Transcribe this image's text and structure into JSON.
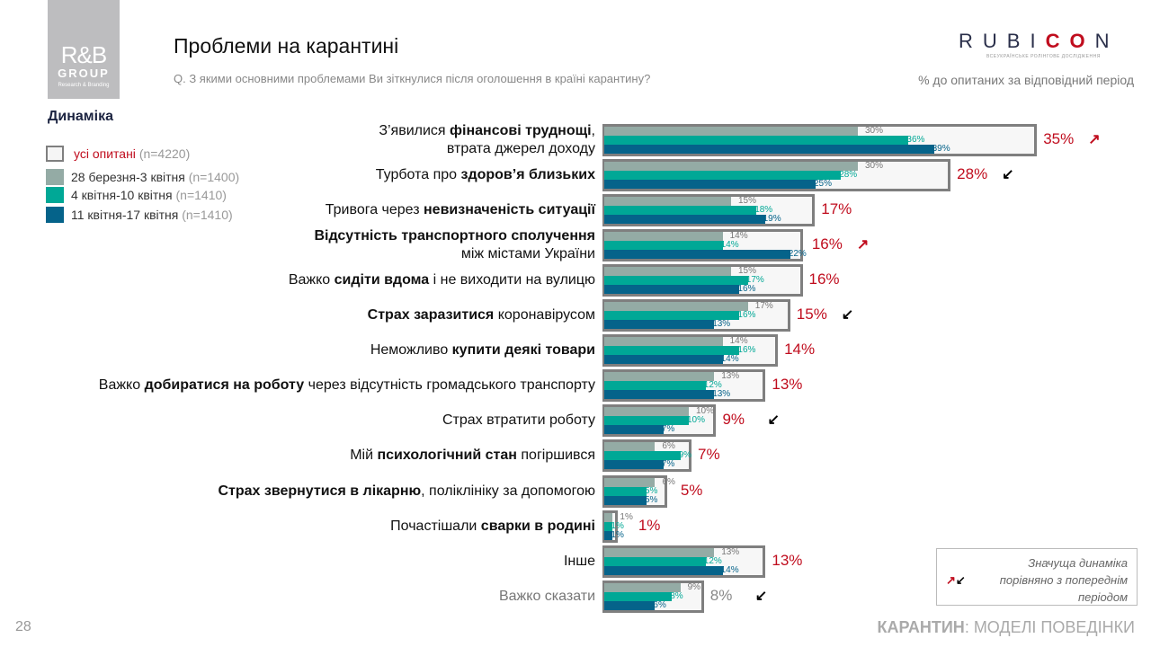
{
  "logo": {
    "line1": "R&B",
    "line2": "GROUP",
    "line3": "Research & Branding"
  },
  "title": "Проблеми на карантині",
  "question": "Q. З якими основними проблемами Ви зіткнулися після оголошення в країні карантину?",
  "brand": {
    "pre": "RUBI",
    "red": "CO",
    "post": "N",
    "subtitle": "ВСЕУКРАЇНСЬКЕ РОЛІНГОВЕ ДОСЛІДЖЕННЯ"
  },
  "pct_note": "% до опитаних за відповідний період",
  "legend": {
    "heading": "Динаміка",
    "items": [
      {
        "label": "усі опитані",
        "n": "(n=4220)",
        "color": "#f5f5f5"
      },
      {
        "label": "28 березня-3 квітня",
        "n": "(n=1400)",
        "color": "#94aba5"
      },
      {
        "label": "4 квітня-10 квітня",
        "n": "(n=1410)",
        "color": "#00a896"
      },
      {
        "label": "11 квітня-17 квітня",
        "n": "(n=1410)",
        "color": "#05638a"
      }
    ]
  },
  "chart_data": {
    "type": "bar",
    "series": [
      {
        "name": "усі опитані",
        "key": "total"
      },
      {
        "name": "28 березня-3 квітня",
        "key": "w1"
      },
      {
        "name": "4 квітня-10 квітня",
        "key": "w2"
      },
      {
        "name": "11 квітня-17 квітня",
        "key": "w3"
      }
    ],
    "rows": [
      {
        "parts": [
          {
            "t": "З’явилися "
          },
          {
            "t": "фінансові труднощі",
            "b": true
          },
          {
            "t": ","
          }
        ],
        "line2": "втрата джерел доходу",
        "total": "35%",
        "values": [
          30,
          36,
          39
        ],
        "labels": [
          "30%",
          "36%",
          "39%"
        ],
        "trend": "up"
      },
      {
        "parts": [
          {
            "t": "Турбота про "
          },
          {
            "t": "здоров’я близьких",
            "b": true
          }
        ],
        "total": "28%",
        "values": [
          30,
          28,
          25
        ],
        "labels": [
          "30%",
          "28%",
          "25%"
        ],
        "trend": "down"
      },
      {
        "parts": [
          {
            "t": "Тривога через "
          },
          {
            "t": "невизначеність ситуації",
            "b": true
          }
        ],
        "total": "17%",
        "values": [
          15,
          18,
          19
        ],
        "labels": [
          "15%",
          "18%",
          "19%"
        ],
        "trend": ""
      },
      {
        "parts": [
          {
            "t": "Відсутність транспортного сполучення",
            "b": true
          }
        ],
        "line2": "між містами України",
        "total": "16%",
        "values": [
          14,
          14,
          22
        ],
        "labels": [
          "14%",
          "14%",
          "22%"
        ],
        "trend": "up"
      },
      {
        "parts": [
          {
            "t": "Важко "
          },
          {
            "t": "сидіти вдома",
            "b": true
          },
          {
            "t": " і не виходити на вулицю"
          }
        ],
        "total": "16%",
        "values": [
          15,
          17,
          16
        ],
        "labels": [
          "15%",
          "17%",
          "16%"
        ],
        "trend": ""
      },
      {
        "parts": [
          {
            "t": "Страх заразитися",
            "b": true
          },
          {
            "t": " коронавірусом"
          }
        ],
        "total": "15%",
        "values": [
          17,
          16,
          13
        ],
        "labels": [
          "17%",
          "16%",
          "13%"
        ],
        "trend": "down"
      },
      {
        "parts": [
          {
            "t": "Неможливо "
          },
          {
            "t": "купити деякі товари",
            "b": true
          }
        ],
        "total": "14%",
        "values": [
          14,
          16,
          14
        ],
        "labels": [
          "14%",
          "16%",
          "14%"
        ],
        "trend": ""
      },
      {
        "parts": [
          {
            "t": "Важко "
          },
          {
            "t": "добиратися на роботу",
            "b": true
          },
          {
            "t": " через відсутність громадського транспорту"
          }
        ],
        "total": "13%",
        "values": [
          13,
          12,
          13
        ],
        "labels": [
          "13%",
          "12%",
          "13%"
        ],
        "trend": ""
      },
      {
        "parts": [
          {
            "t": "Страх втратити роботу"
          }
        ],
        "total": "9%",
        "values": [
          10,
          10,
          7
        ],
        "labels": [
          "10%",
          "10%",
          "7%"
        ],
        "trend": "down"
      },
      {
        "parts": [
          {
            "t": "Мій "
          },
          {
            "t": "психологічний стан",
            "b": true
          },
          {
            "t": " погіршився"
          }
        ],
        "total": "7%",
        "values": [
          6,
          9,
          7
        ],
        "labels": [
          "6%",
          "9%",
          "7%"
        ],
        "trend": ""
      },
      {
        "parts": [
          {
            "t": "Страх звернутися в лікарню",
            "b": true
          },
          {
            "t": ", поліклініку за допомогою"
          }
        ],
        "total": "5%",
        "values": [
          6,
          5,
          5
        ],
        "labels": [
          "6%",
          "5%",
          "5%"
        ],
        "trend": ""
      },
      {
        "parts": [
          {
            "t": "Почастішали "
          },
          {
            "t": "сварки в родині",
            "b": true
          }
        ],
        "total": "1%",
        "values": [
          1,
          1,
          1
        ],
        "labels": [
          "1%",
          "1%",
          "1%"
        ],
        "trend": ""
      },
      {
        "parts": [
          {
            "t": "Інше"
          }
        ],
        "total": "13%",
        "values": [
          13,
          12,
          14
        ],
        "labels": [
          "13%",
          "12%",
          "14%"
        ],
        "trend": ""
      },
      {
        "parts": [
          {
            "t": "Важко сказати"
          }
        ],
        "total": "8%",
        "values": [
          9,
          8,
          6
        ],
        "labels": [
          "9%",
          "8%",
          "6%"
        ],
        "trend": "down",
        "muted": true
      }
    ]
  },
  "note": {
    "line1": "Значуща динаміка",
    "line2": "порівняно з попереднім",
    "line3": "періодом"
  },
  "page_number": "28",
  "footer": {
    "bold": "КАРАНТИН",
    "rest": ": МОДЕЛІ ПОВЕДІНКИ"
  }
}
